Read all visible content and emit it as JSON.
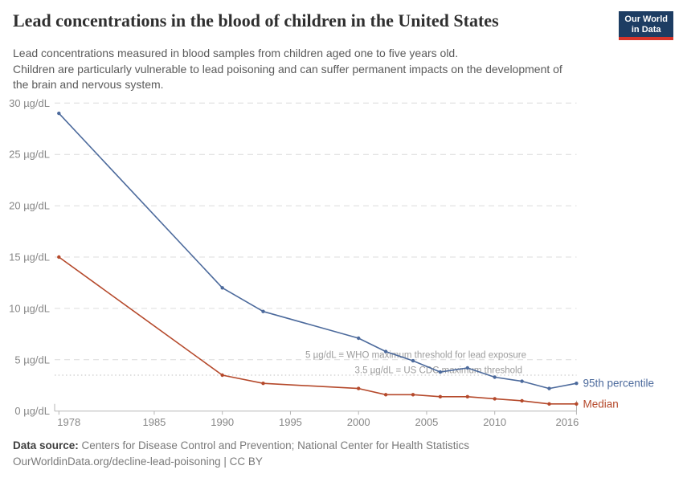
{
  "header": {
    "title": "Lead concentrations in the blood of children in the United States",
    "subtitle": {
      "line1": "Lead concentrations measured in blood samples from children aged one to five years old.",
      "line2": "Children are particularly vulnerable to lead poisoning and can suffer permanent impacts on the development of",
      "line3": "the brain and nervous system."
    },
    "logo": {
      "line1": "Our World",
      "line2": "in Data"
    }
  },
  "colors": {
    "series_blue": "#4C6A9C",
    "series_red": "#B5492B",
    "logo_navy": "#1D3D63",
    "logo_red": "#D8352A",
    "grid": "#DCDCDC",
    "axis": "#B5B5B5",
    "tick_text": "#878787",
    "annotation_text": "#9C9C9C"
  },
  "chart_data": {
    "type": "line",
    "unit": "µg/dL",
    "x": [
      1978,
      1990,
      1993,
      2000,
      2002,
      2004,
      2006,
      2008,
      2010,
      2012,
      2014,
      2016
    ],
    "series": [
      {
        "name": "95th percentile",
        "color": "#4C6A9C",
        "values": [
          29,
          12,
          9.7,
          7.1,
          5.8,
          4.9,
          3.8,
          4.2,
          3.3,
          2.9,
          2.2,
          2.7
        ]
      },
      {
        "name": "Median",
        "color": "#B5492B",
        "values": [
          15,
          3.5,
          2.7,
          2.2,
          1.6,
          1.6,
          1.4,
          1.4,
          1.2,
          1.0,
          0.7,
          0.7
        ]
      }
    ],
    "yticks": [
      0,
      5,
      10,
      15,
      20,
      25,
      30
    ],
    "xticks": [
      1978,
      1985,
      1990,
      1995,
      2000,
      2005,
      2010,
      2016
    ],
    "ylim": [
      0,
      30
    ],
    "xlim": [
      1977.7,
      2016
    ],
    "grid": "horizontal-dashed",
    "legend_position": "end-of-line-labels",
    "annotations": [
      {
        "text": "5 µg/dL ≡ WHO maximum threshold for lead exposure",
        "value": 5,
        "line": "none"
      },
      {
        "text": "3.5 µg/dL = US CDC maximum threshold",
        "value": 3.5,
        "line": "dotted"
      }
    ]
  },
  "footer": {
    "source_label": "Data source:",
    "source_text": " Centers for Disease Control and Prevention; National Center for Health Statistics",
    "citation": "OurWorldinData.org/decline-lead-poisoning | CC BY"
  }
}
